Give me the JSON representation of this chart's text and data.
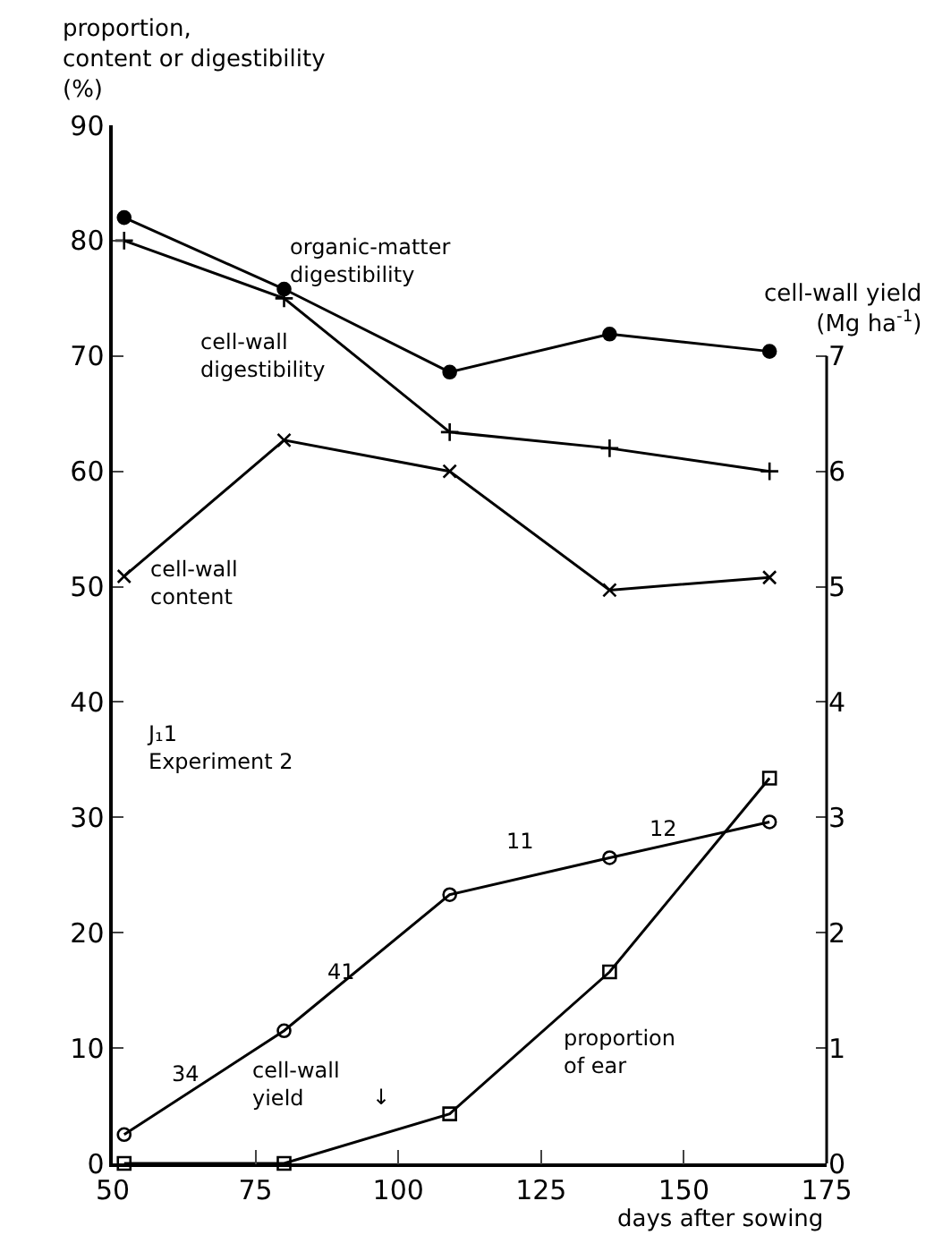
{
  "chart_data": {
    "type": "line",
    "ylabel": "proportion,\ncontent or digestibility\n(%)",
    "y2label": "cell-wall yield\n(Mg ha$^{-1}$)",
    "xlabel": "days after sowing",
    "xlim": [
      50,
      175
    ],
    "xticks": [
      50,
      75,
      100,
      125,
      150,
      175
    ],
    "ylim": [
      0,
      90
    ],
    "yticks": [
      0,
      10,
      20,
      30,
      40,
      50,
      60,
      70,
      80,
      90
    ],
    "y2lim": [
      0,
      9
    ],
    "y2ticks": [
      0,
      1,
      2,
      3,
      4,
      5,
      6,
      7
    ],
    "series": [
      {
        "color": "#000000",
        "marker": "circle",
        "x": [
          52,
          80,
          109,
          137,
          165
        ],
        "values": [
          82,
          75.8,
          68.6,
          71.9,
          70.4
        ]
      },
      {
        "color": "#000000",
        "marker": "cross",
        "x": [
          52,
          80,
          109,
          137,
          165
        ],
        "values": [
          80,
          75,
          63.4,
          62,
          60
        ]
      },
      {
        "color": "#000000",
        "marker": "x",
        "x": [
          52,
          80,
          109,
          137,
          165
        ],
        "values": [
          50.9,
          62.7,
          60,
          49.7,
          50.8
        ]
      },
      {
        "color": "#000000",
        "marker": "circle-open",
        "axis": "y2",
        "x": [
          52,
          80,
          109,
          137,
          165
        ],
        "values": [
          0.25,
          1.15,
          2.33,
          2.65,
          2.96
        ]
      },
      {
        "color": "#000000",
        "marker": "square-open",
        "x": [
          52,
          80,
          109,
          137,
          165
        ],
        "values": [
          0,
          0,
          4.3,
          16.6,
          33.4
        ]
      }
    ],
    "annotations": [
      "organic-matter\ndigestibility",
      "cell-wall\ndigestibility",
      "cell-wall\ncontent",
      "cell-wall\nyield",
      "proportion\nof ear",
      "J₁1\nExperiment 2",
      "34",
      "41",
      "11",
      "12",
      "↓"
    ]
  }
}
